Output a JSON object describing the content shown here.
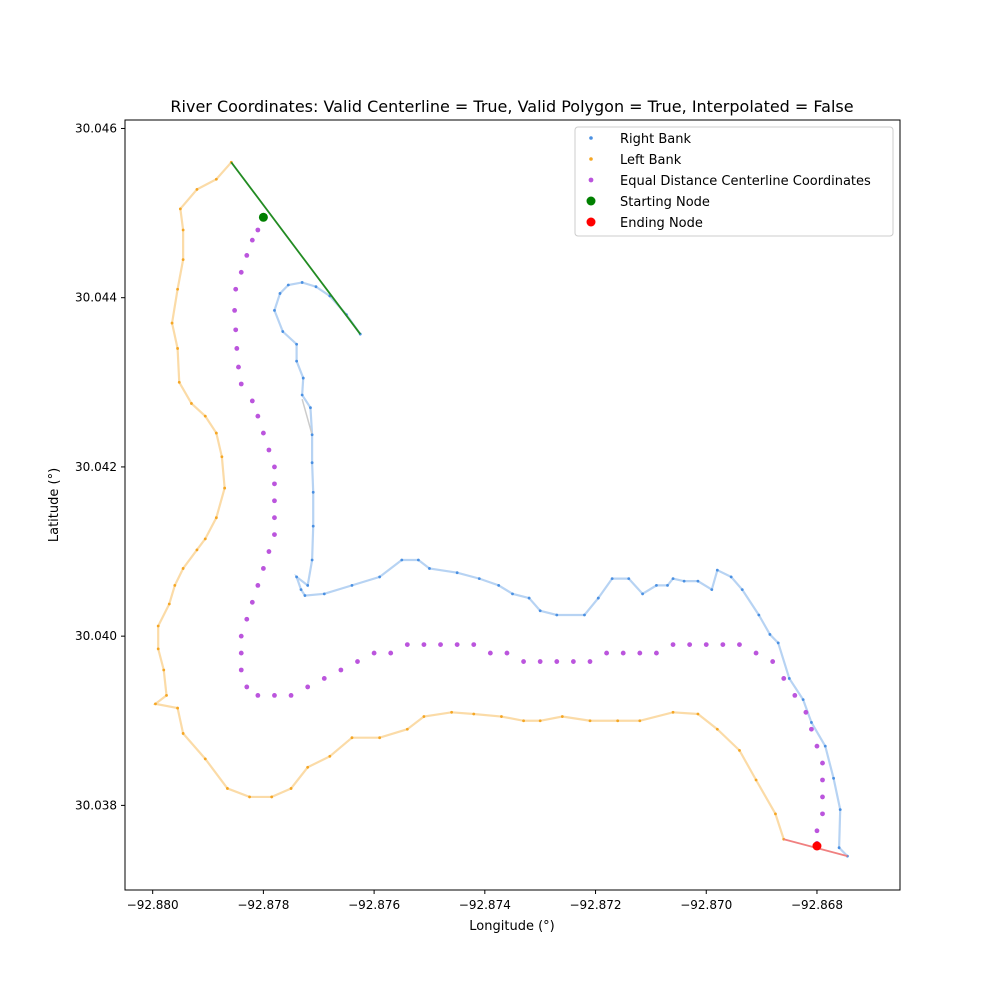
{
  "chart_data": {
    "type": "scatter",
    "title": "River Coordinates: Valid Centerline = True, Valid Polygon = True, Interpolated = False",
    "xlabel": "Longitude (°)",
    "ylabel": "Latitude (°)",
    "xlim": [
      -92.8805,
      -92.8665
    ],
    "ylim": [
      30.037,
      30.0461
    ],
    "xticks": [
      -92.88,
      -92.878,
      -92.876,
      -92.874,
      -92.872,
      -92.87,
      -92.868
    ],
    "xtick_labels": [
      "−92.880",
      "−92.878",
      "−92.876",
      "−92.874",
      "−92.872",
      "−92.870",
      "−92.868"
    ],
    "yticks": [
      30.038,
      30.04,
      30.042,
      30.044,
      30.046
    ],
    "ytick_labels": [
      "30.038",
      "30.040",
      "30.042",
      "30.044",
      "30.046"
    ],
    "grid": false,
    "legend_position": "top-right",
    "colors": {
      "right_bank": "#4a90e2",
      "left_bank": "#f5a623",
      "centerline": "#bb55dd",
      "start": "#008000",
      "end": "#ff0000",
      "start_line": "#228b22",
      "end_line": "#f08080",
      "gap_line": "#cccccc"
    },
    "series": [
      {
        "name": "Right Bank",
        "marker": "dot",
        "points": [
          [
            -92.87625,
            30.04357
          ],
          [
            -92.8765,
            30.0438
          ],
          [
            -92.8768,
            30.04402
          ],
          [
            -92.87705,
            30.04413
          ],
          [
            -92.8773,
            30.04418
          ],
          [
            -92.87755,
            30.04415
          ],
          [
            -92.8777,
            30.04405
          ],
          [
            -92.8778,
            30.04385
          ],
          [
            -92.87765,
            30.0436
          ],
          [
            -92.8774,
            30.04345
          ],
          [
            -92.8774,
            30.04325
          ],
          [
            -92.87728,
            30.04305
          ],
          [
            -92.8773,
            30.04285
          ],
          [
            -92.87715,
            30.0427
          ],
          [
            -92.87712,
            30.04238
          ],
          [
            -92.87712,
            30.04205
          ],
          [
            -92.8771,
            30.0417
          ],
          [
            -92.8771,
            30.0413
          ],
          [
            -92.87712,
            30.0409
          ],
          [
            -92.8772,
            30.0406
          ],
          [
            -92.8774,
            30.0407
          ],
          [
            -92.87732,
            30.04055
          ],
          [
            -92.87725,
            30.04048
          ],
          [
            -92.8769,
            30.0405
          ],
          [
            -92.8764,
            30.0406
          ],
          [
            -92.8759,
            30.0407
          ],
          [
            -92.8755,
            30.0409
          ],
          [
            -92.8752,
            30.0409
          ],
          [
            -92.875,
            30.0408
          ],
          [
            -92.8745,
            30.04075
          ],
          [
            -92.8741,
            30.04068
          ],
          [
            -92.87375,
            30.0406
          ],
          [
            -92.8735,
            30.0405
          ],
          [
            -92.8732,
            30.04045
          ],
          [
            -92.873,
            30.0403
          ],
          [
            -92.8727,
            30.04025
          ],
          [
            -92.8722,
            30.04025
          ],
          [
            -92.87195,
            30.04045
          ],
          [
            -92.8717,
            30.04068
          ],
          [
            -92.8714,
            30.04068
          ],
          [
            -92.87115,
            30.0405
          ],
          [
            -92.8709,
            30.0406
          ],
          [
            -92.8707,
            30.0406
          ],
          [
            -92.8706,
            30.04068
          ],
          [
            -92.8704,
            30.04065
          ],
          [
            -92.87015,
            30.04065
          ],
          [
            -92.8699,
            30.04055
          ],
          [
            -92.8698,
            30.04078
          ],
          [
            -92.86955,
            30.0407
          ],
          [
            -92.86935,
            30.04055
          ],
          [
            -92.86905,
            30.04025
          ],
          [
            -92.86885,
            30.04002
          ],
          [
            -92.8687,
            30.03992
          ],
          [
            -92.8685,
            30.0395
          ],
          [
            -92.86825,
            30.03925
          ],
          [
            -92.8681,
            30.03898
          ],
          [
            -92.86785,
            30.0387
          ],
          [
            -92.8677,
            30.03832
          ],
          [
            -92.86758,
            30.03795
          ],
          [
            -92.8676,
            30.0375
          ],
          [
            -92.86745,
            30.0374
          ]
        ]
      },
      {
        "name": "Left Bank",
        "marker": "dot",
        "points": [
          [
            -92.87858,
            30.0456
          ],
          [
            -92.87885,
            30.0454
          ],
          [
            -92.8792,
            30.04528
          ],
          [
            -92.8795,
            30.04505
          ],
          [
            -92.87945,
            30.0448
          ],
          [
            -92.87945,
            30.04445
          ],
          [
            -92.87955,
            30.0441
          ],
          [
            -92.87965,
            30.0437
          ],
          [
            -92.87955,
            30.0434
          ],
          [
            -92.87952,
            30.043
          ],
          [
            -92.8793,
            30.04275
          ],
          [
            -92.87905,
            30.0426
          ],
          [
            -92.87885,
            30.0424
          ],
          [
            -92.87875,
            30.04212
          ],
          [
            -92.8787,
            30.04175
          ],
          [
            -92.87885,
            30.0414
          ],
          [
            -92.87905,
            30.04115
          ],
          [
            -92.8792,
            30.04102
          ],
          [
            -92.87945,
            30.0408
          ],
          [
            -92.8796,
            30.0406
          ],
          [
            -92.8797,
            30.04038
          ],
          [
            -92.8799,
            30.04012
          ],
          [
            -92.8799,
            30.03985
          ],
          [
            -92.8798,
            30.0396
          ],
          [
            -92.87975,
            30.0393
          ],
          [
            -92.87995,
            30.0392
          ],
          [
            -92.87955,
            30.03915
          ],
          [
            -92.87945,
            30.03885
          ],
          [
            -92.87905,
            30.03855
          ],
          [
            -92.87865,
            30.0382
          ],
          [
            -92.87825,
            30.0381
          ],
          [
            -92.87785,
            30.0381
          ],
          [
            -92.8775,
            30.0382
          ],
          [
            -92.8772,
            30.03845
          ],
          [
            -92.8768,
            30.03858
          ],
          [
            -92.8764,
            30.0388
          ],
          [
            -92.8759,
            30.0388
          ],
          [
            -92.8754,
            30.0389
          ],
          [
            -92.8751,
            30.03905
          ],
          [
            -92.8746,
            30.0391
          ],
          [
            -92.8742,
            30.03908
          ],
          [
            -92.8737,
            30.03905
          ],
          [
            -92.8733,
            30.039
          ],
          [
            -92.873,
            30.039
          ],
          [
            -92.8726,
            30.03905
          ],
          [
            -92.8721,
            30.039
          ],
          [
            -92.8716,
            30.039
          ],
          [
            -92.8712,
            30.039
          ],
          [
            -92.8706,
            30.0391
          ],
          [
            -92.87015,
            30.03908
          ],
          [
            -92.8698,
            30.0389
          ],
          [
            -92.8694,
            30.03865
          ],
          [
            -92.8691,
            30.0383
          ],
          [
            -92.86875,
            30.0379
          ],
          [
            -92.8686,
            30.0376
          ]
        ]
      },
      {
        "name": "Equal Distance Centerline Coordinates",
        "marker": "circle",
        "points": [
          [
            -92.878,
            30.04495
          ],
          [
            -92.8781,
            30.0448
          ],
          [
            -92.8782,
            30.04468
          ],
          [
            -92.8783,
            30.0445
          ],
          [
            -92.8784,
            30.0443
          ],
          [
            -92.8785,
            30.0441
          ],
          [
            -92.87852,
            30.04385
          ],
          [
            -92.8785,
            30.04362
          ],
          [
            -92.87848,
            30.0434
          ],
          [
            -92.87845,
            30.04318
          ],
          [
            -92.8784,
            30.04298
          ],
          [
            -92.8782,
            30.04278
          ],
          [
            -92.8781,
            30.0426
          ],
          [
            -92.878,
            30.0424
          ],
          [
            -92.8779,
            30.0422
          ],
          [
            -92.8778,
            30.042
          ],
          [
            -92.8778,
            30.0418
          ],
          [
            -92.8778,
            30.0416
          ],
          [
            -92.8778,
            30.0414
          ],
          [
            -92.8778,
            30.0412
          ],
          [
            -92.8779,
            30.041
          ],
          [
            -92.878,
            30.0408
          ],
          [
            -92.8781,
            30.0406
          ],
          [
            -92.8782,
            30.0404
          ],
          [
            -92.8783,
            30.0402
          ],
          [
            -92.8784,
            30.04
          ],
          [
            -92.8784,
            30.0398
          ],
          [
            -92.8784,
            30.0396
          ],
          [
            -92.8783,
            30.0394
          ],
          [
            -92.8781,
            30.0393
          ],
          [
            -92.8778,
            30.0393
          ],
          [
            -92.8775,
            30.0393
          ],
          [
            -92.8772,
            30.0394
          ],
          [
            -92.8769,
            30.0395
          ],
          [
            -92.8766,
            30.0396
          ],
          [
            -92.8763,
            30.0397
          ],
          [
            -92.876,
            30.0398
          ],
          [
            -92.8757,
            30.0398
          ],
          [
            -92.8754,
            30.0399
          ],
          [
            -92.8751,
            30.0399
          ],
          [
            -92.8748,
            30.0399
          ],
          [
            -92.8745,
            30.0399
          ],
          [
            -92.8742,
            30.0399
          ],
          [
            -92.8739,
            30.0398
          ],
          [
            -92.8736,
            30.0398
          ],
          [
            -92.8733,
            30.0397
          ],
          [
            -92.873,
            30.0397
          ],
          [
            -92.8727,
            30.0397
          ],
          [
            -92.8724,
            30.0397
          ],
          [
            -92.8721,
            30.0397
          ],
          [
            -92.8718,
            30.0398
          ],
          [
            -92.8715,
            30.0398
          ],
          [
            -92.8712,
            30.0398
          ],
          [
            -92.8709,
            30.0398
          ],
          [
            -92.8706,
            30.0399
          ],
          [
            -92.8703,
            30.0399
          ],
          [
            -92.87,
            30.0399
          ],
          [
            -92.8697,
            30.0399
          ],
          [
            -92.8694,
            30.0399
          ],
          [
            -92.8691,
            30.0398
          ],
          [
            -92.8688,
            30.0397
          ],
          [
            -92.8686,
            30.0395
          ],
          [
            -92.8684,
            30.0393
          ],
          [
            -92.8682,
            30.0391
          ],
          [
            -92.8681,
            30.0389
          ],
          [
            -92.868,
            30.0387
          ],
          [
            -92.8679,
            30.0385
          ],
          [
            -92.8679,
            30.0383
          ],
          [
            -92.8679,
            30.0381
          ],
          [
            -92.8679,
            30.0379
          ],
          [
            -92.868,
            30.0377
          ],
          [
            -92.868,
            30.03755
          ]
        ]
      },
      {
        "name": "Starting Node",
        "marker": "big-circle",
        "points": [
          [
            -92.878,
            30.04495
          ]
        ]
      },
      {
        "name": "Ending Node",
        "marker": "big-circle",
        "points": [
          [
            -92.868,
            30.03752
          ]
        ]
      }
    ],
    "lines": {
      "start_connector": [
        [
          -92.87858,
          30.0456
        ],
        [
          -92.87625,
          30.04357
        ]
      ],
      "end_connector": [
        [
          -92.8686,
          30.0376
        ],
        [
          -92.86745,
          30.0374
        ]
      ],
      "right_bank_gap": [
        [
          -92.8773,
          30.0428
        ],
        [
          -92.87712,
          30.04238
        ]
      ]
    }
  }
}
